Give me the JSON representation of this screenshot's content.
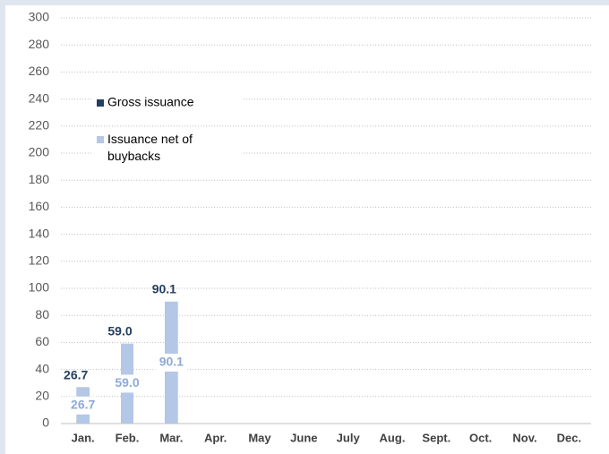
{
  "chart_data": {
    "type": "bar",
    "categories": [
      "Jan.",
      "Feb.",
      "Mar.",
      "Apr.",
      "May",
      "June",
      "July",
      "Aug.",
      "Sept.",
      "Oct.",
      "Nov.",
      "Dec."
    ],
    "series": [
      {
        "name": "Gross issuance",
        "color": "#243f60",
        "values": [
          26.7,
          59.0,
          90.1,
          null,
          null,
          null,
          null,
          null,
          null,
          null,
          null,
          null
        ],
        "value_labels": [
          "26.7",
          "59.0",
          "90.1",
          null,
          null,
          null,
          null,
          null,
          null,
          null,
          null,
          null
        ]
      },
      {
        "name": "Issuance net of buybacks",
        "color": "#b4c7e7",
        "values": [
          26.7,
          59.0,
          90.1,
          null,
          null,
          null,
          null,
          null,
          null,
          null,
          null,
          null
        ],
        "value_labels": [
          "26.7",
          "59.0",
          "90.1",
          null,
          null,
          null,
          null,
          null,
          null,
          null,
          null,
          null
        ]
      }
    ],
    "ylim": [
      0,
      300
    ],
    "yticks": [
      0,
      20,
      40,
      60,
      80,
      100,
      120,
      140,
      160,
      180,
      200,
      220,
      240,
      260,
      280,
      300
    ],
    "grid": true
  }
}
